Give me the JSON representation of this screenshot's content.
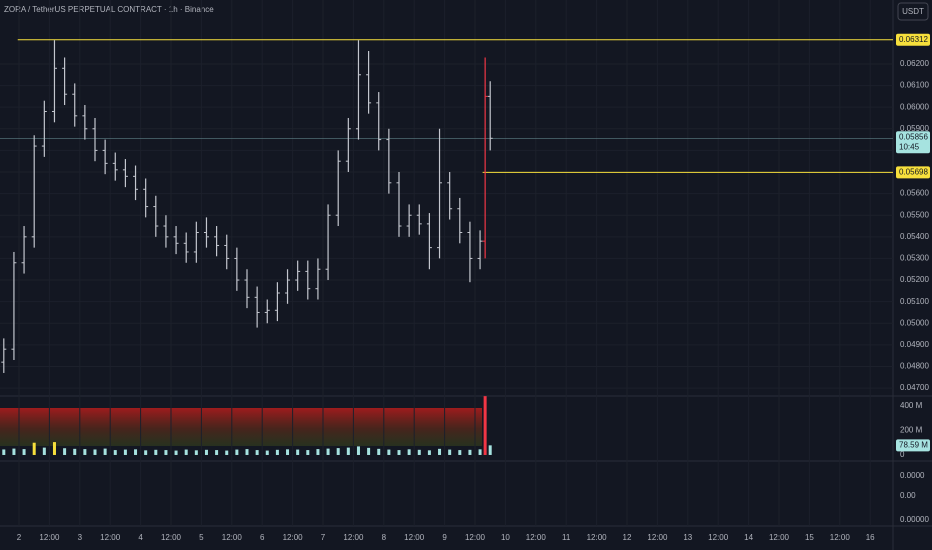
{
  "chart_data": {
    "type": "ohlc",
    "title": "ZORA / TetherUS PERPETUAL CONTRACT · 1h · Binance",
    "currency_button": "USDT",
    "color": "#c3c6ce",
    "highlight_index": 48,
    "highlight_color": "#f23645",
    "grid": true,
    "x": [
      -6,
      -2,
      2,
      6,
      10,
      14,
      18,
      22,
      26,
      30,
      34,
      38,
      42,
      46,
      50,
      54,
      58,
      62,
      66,
      70,
      74,
      78,
      82,
      86,
      90,
      94,
      98,
      102,
      106,
      110,
      114,
      118,
      122,
      126,
      130,
      134,
      138,
      142,
      146,
      150,
      154,
      158,
      162,
      166,
      170,
      174,
      178,
      182,
      184,
      186
    ],
    "open": [
      0.0482,
      0.0488,
      0.0528,
      0.054,
      0.0582,
      0.0598,
      0.0618,
      0.0606,
      0.0596,
      0.059,
      0.058,
      0.0574,
      0.0571,
      0.0568,
      0.0562,
      0.0554,
      0.0545,
      0.054,
      0.0537,
      0.0533,
      0.0542,
      0.054,
      0.0536,
      0.053,
      0.052,
      0.0512,
      0.0505,
      0.0506,
      0.0514,
      0.052,
      0.0524,
      0.0516,
      0.0525,
      0.055,
      0.0575,
      0.059,
      0.0615,
      0.0602,
      0.0585,
      0.0565,
      0.0545,
      0.055,
      0.0546,
      0.0535,
      0.0565,
      0.0553,
      0.0542,
      0.053,
      0.0538,
      0.0605
    ],
    "high": [
      0.0493,
      0.0533,
      0.0545,
      0.0587,
      0.0603,
      0.0631,
      0.0623,
      0.0611,
      0.0601,
      0.0595,
      0.0585,
      0.0579,
      0.0576,
      0.0573,
      0.0567,
      0.0559,
      0.055,
      0.0545,
      0.0542,
      0.0547,
      0.0549,
      0.0545,
      0.0541,
      0.0535,
      0.0525,
      0.0517,
      0.0511,
      0.0519,
      0.0525,
      0.0529,
      0.0529,
      0.053,
      0.0555,
      0.058,
      0.0595,
      0.0631,
      0.0626,
      0.0607,
      0.059,
      0.057,
      0.0555,
      0.0555,
      0.0551,
      0.059,
      0.057,
      0.0558,
      0.0547,
      0.0543,
      0.0623,
      0.0612
    ],
    "low": [
      0.0477,
      0.0483,
      0.0523,
      0.0535,
      0.0577,
      0.0593,
      0.0601,
      0.0591,
      0.0585,
      0.0575,
      0.0569,
      0.0566,
      0.0563,
      0.0557,
      0.0549,
      0.054,
      0.0535,
      0.0532,
      0.0528,
      0.0528,
      0.0535,
      0.0531,
      0.0525,
      0.0515,
      0.0507,
      0.0498,
      0.05,
      0.0501,
      0.0509,
      0.0515,
      0.0511,
      0.0511,
      0.052,
      0.0545,
      0.057,
      0.0585,
      0.0597,
      0.058,
      0.056,
      0.054,
      0.054,
      0.0541,
      0.0525,
      0.053,
      0.0548,
      0.0537,
      0.0519,
      0.0525,
      0.053,
      0.058
    ],
    "close": [
      0.0488,
      0.0528,
      0.054,
      0.0582,
      0.0598,
      0.0618,
      0.0606,
      0.0596,
      0.059,
      0.058,
      0.0574,
      0.0571,
      0.0568,
      0.0562,
      0.0554,
      0.0545,
      0.054,
      0.0537,
      0.0533,
      0.0542,
      0.054,
      0.0536,
      0.053,
      0.052,
      0.0512,
      0.0505,
      0.0506,
      0.0514,
      0.052,
      0.0524,
      0.0516,
      0.0525,
      0.055,
      0.0575,
      0.059,
      0.0615,
      0.0602,
      0.0585,
      0.0565,
      0.0545,
      0.055,
      0.0546,
      0.0535,
      0.0565,
      0.0553,
      0.0542,
      0.053,
      0.0538,
      0.0605,
      0.05856
    ],
    "xlim": [
      -7.5,
      345
    ],
    "ylim": [
      0.04668,
      0.06496
    ],
    "yticks": [
      {
        "value": 0.047,
        "label": "0.04700"
      },
      {
        "value": 0.048,
        "label": "0.04800"
      },
      {
        "value": 0.049,
        "label": "0.04900"
      },
      {
        "value": 0.05,
        "label": "0.05000"
      },
      {
        "value": 0.051,
        "label": "0.05100"
      },
      {
        "value": 0.052,
        "label": "0.05200"
      },
      {
        "value": 0.053,
        "label": "0.05300"
      },
      {
        "value": 0.054,
        "label": "0.05400"
      },
      {
        "value": 0.055,
        "label": "0.05500"
      },
      {
        "value": 0.056,
        "label": "0.05600"
      },
      {
        "value": 0.057,
        "label": "0.05700"
      },
      {
        "value": 0.058,
        "label": "0.05800"
      },
      {
        "value": 0.059,
        "label": "0.05900"
      },
      {
        "value": 0.06,
        "label": "0.06000"
      },
      {
        "value": 0.061,
        "label": "0.06100"
      },
      {
        "value": 0.062,
        "label": "0.06200"
      }
    ],
    "xticks": [
      {
        "value": 0,
        "label": "2"
      },
      {
        "value": 12,
        "label": "12:00"
      },
      {
        "value": 24,
        "label": "3"
      },
      {
        "value": 36,
        "label": "12:00"
      },
      {
        "value": 48,
        "label": "4"
      },
      {
        "value": 60,
        "label": "12:00"
      },
      {
        "value": 72,
        "label": "5"
      },
      {
        "value": 84,
        "label": "12:00"
      },
      {
        "value": 96,
        "label": "6"
      },
      {
        "value": 108,
        "label": "12:00"
      },
      {
        "value": 120,
        "label": "7"
      },
      {
        "value": 132,
        "label": "12:00"
      },
      {
        "value": 144,
        "label": "8"
      },
      {
        "value": 156,
        "label": "12:00"
      },
      {
        "value": 168,
        "label": "9"
      },
      {
        "value": 180,
        "label": "12:00"
      },
      {
        "value": 192,
        "label": "10"
      },
      {
        "value": 204,
        "label": "12:00"
      },
      {
        "value": 216,
        "label": "11"
      },
      {
        "value": 228,
        "label": "12:00"
      },
      {
        "value": 240,
        "label": "12"
      },
      {
        "value": 252,
        "label": "12:00"
      },
      {
        "value": 264,
        "label": "13"
      },
      {
        "value": 276,
        "label": "12:00"
      },
      {
        "value": 288,
        "label": "14"
      },
      {
        "value": 300,
        "label": "12:00"
      },
      {
        "value": 312,
        "label": "15"
      },
      {
        "value": 324,
        "label": "12:00"
      },
      {
        "value": 336,
        "label": "16"
      }
    ],
    "levels": [
      {
        "value": 0.06312,
        "label": "0.06312",
        "x_start": -0.5,
        "color": "#f7e03c"
      },
      {
        "value": 0.05698,
        "label": "0.05698",
        "x_start": 183,
        "color": "#f7e03c"
      }
    ],
    "current_price": {
      "value": 0.05856,
      "label": "0.05856",
      "countdown": "10:45",
      "color": "#a6e3e0"
    },
    "volume": {
      "type": "bar",
      "color": "#a6e3e0",
      "highlight_color": "#f7e03c",
      "values": [
        45,
        52,
        48,
        100,
        60,
        105,
        55,
        50,
        48,
        45,
        52,
        40,
        44,
        46,
        38,
        42,
        40,
        36,
        44,
        38,
        42,
        40,
        36,
        44,
        48,
        40,
        36,
        42,
        46,
        44,
        40,
        48,
        52,
        56,
        60,
        70,
        58,
        50,
        44,
        40,
        46,
        42,
        38,
        50,
        44,
        40,
        42,
        46,
        480,
        78.59
      ],
      "highlighted": [
        3,
        5
      ],
      "last_label": "78.59 M",
      "ylim": [
        -41,
        473
      ],
      "yticks": [
        0,
        {
          "value": 200,
          "label": "200 M"
        },
        {
          "value": 400,
          "label": "400 M"
        }
      ]
    },
    "lower_pane": {
      "labels": [
        "0.0000",
        "0.00",
        "0.00000"
      ]
    }
  }
}
